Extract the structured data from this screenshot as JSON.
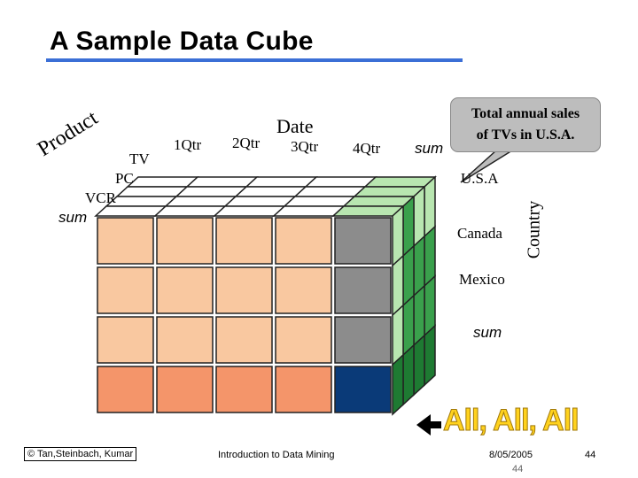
{
  "title": "A Sample Data Cube",
  "axes": {
    "date": {
      "label": "Date",
      "values": [
        "1Qtr",
        "2Qtr",
        "3Qtr",
        "4Qtr",
        "sum"
      ]
    },
    "product": {
      "label": "Product",
      "values": [
        "TV",
        "PC",
        "VCR",
        "sum"
      ]
    },
    "country": {
      "label": "Country",
      "values": [
        "U.S.A",
        "Canada",
        "Mexico",
        "sum"
      ]
    }
  },
  "callout": {
    "line1": "Total annual sales",
    "line2": "of  TVs in U.S.A."
  },
  "all_label": "All, All, All",
  "footer": {
    "copyright": "© Tan,Steinbach, Kumar",
    "course": "Introduction to Data Mining",
    "date": "8/05/2005",
    "page_small": "44",
    "page": "44"
  },
  "colors": {
    "title_rule": "#3b6fd6",
    "front_cell": "#f9c8a0",
    "front_sum_row": "#f4956a",
    "grey_column": "#8c8c8c",
    "grey_column_sum": "#0a3a78",
    "side_green": "#3aa04c",
    "side_light_green": "#b8e6b0",
    "top_cell": "#ffffff"
  }
}
